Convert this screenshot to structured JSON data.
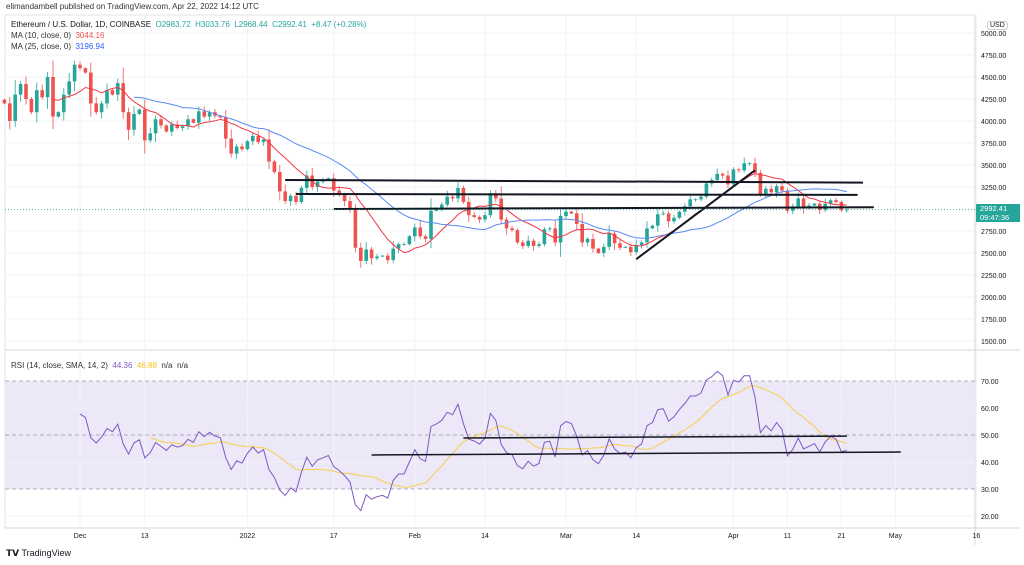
{
  "publisher_line": "elimandambell published on TradingView.com, Apr 22, 2022 14:12 UTC",
  "legend": {
    "symbol": "Ethereum / U.S. Dollar, 1D, COINBASE",
    "open": "O2983.72",
    "high": "H3033.76",
    "low": "L2968.44",
    "close": "C2992.41",
    "change": "+8.47 (+0.28%)",
    "ma10_label": "MA (10, close, 0)",
    "ma10_value": "3044.16",
    "ma25_label": "MA (25, close, 0)",
    "ma25_value": "3196.94",
    "rsi_label": "RSI (14, close, SMA, 14, 2)",
    "rsi_value": "44.36",
    "rsi_sma_value": "46.88",
    "na1": "n/a",
    "na2": "n/a"
  },
  "currency": "USD",
  "last_price": "2992.41",
  "countdown": "09:47:36",
  "logo_text": "TradingView",
  "colors": {
    "up": "#26a69a",
    "down": "#ef5350",
    "ma10": "#f23645",
    "ma25": "#5b8af5",
    "rsi": "#7e57c2",
    "rsi_sma": "#f5d04a",
    "band": "#ede8f8"
  },
  "chart_data": {
    "type": "candlestick",
    "price_ticks": [
      "5000.00",
      "4750.00",
      "4500.00",
      "4250.00",
      "4000.00",
      "3750.00",
      "3500.00",
      "3250.00",
      "2750.00",
      "2500.00",
      "2250.00",
      "2000.00",
      "1750.00",
      "1500.00"
    ],
    "rsi_ticks": [
      "70.00",
      "60.00",
      "50.00",
      "40.00",
      "30.00",
      "20.00"
    ],
    "time_ticks": [
      [
        "Dec",
        "2021-12-01"
      ],
      [
        "13",
        "2021-12-13"
      ],
      [
        "2022",
        "2022-01-01"
      ],
      [
        "17",
        "2022-01-17"
      ],
      [
        "Feb",
        "2022-02-01"
      ],
      [
        "14",
        "2022-02-14"
      ],
      [
        "Mar",
        "2022-03-01"
      ],
      [
        "14",
        "2022-03-14"
      ],
      [
        "Apr",
        "2022-04-01"
      ],
      [
        "11",
        "2022-04-11"
      ],
      [
        "21",
        "2022-04-21"
      ],
      [
        "May",
        "2022-05-01"
      ],
      [
        "16",
        "2022-05-16"
      ]
    ],
    "closes": [
      [
        "2021-11-17",
        4200
      ],
      [
        "2021-11-18",
        4000
      ],
      [
        "2021-11-19",
        4300
      ],
      [
        "2021-11-20",
        4420
      ],
      [
        "2021-11-21",
        4250
      ],
      [
        "2021-11-22",
        4100
      ],
      [
        "2021-11-23",
        4350
      ],
      [
        "2021-11-24",
        4270
      ],
      [
        "2021-11-25",
        4500
      ],
      [
        "2021-11-26",
        4050
      ],
      [
        "2021-11-27",
        4100
      ],
      [
        "2021-11-28",
        4300
      ],
      [
        "2021-11-29",
        4450
      ],
      [
        "2021-11-30",
        4640
      ],
      [
        "2021-12-01",
        4600
      ],
      [
        "2021-12-02",
        4550
      ],
      [
        "2021-12-03",
        4200
      ],
      [
        "2021-12-04",
        4100
      ],
      [
        "2021-12-05",
        4200
      ],
      [
        "2021-12-06",
        4350
      ],
      [
        "2021-12-07",
        4300
      ],
      [
        "2021-12-08",
        4430
      ],
      [
        "2021-12-09",
        4100
      ],
      [
        "2021-12-10",
        3900
      ],
      [
        "2021-12-11",
        4080
      ],
      [
        "2021-12-12",
        4130
      ],
      [
        "2021-12-13",
        3780
      ],
      [
        "2021-12-14",
        3860
      ],
      [
        "2021-12-15",
        4020
      ],
      [
        "2021-12-16",
        3950
      ],
      [
        "2021-12-17",
        3880
      ],
      [
        "2021-12-18",
        3960
      ],
      [
        "2021-12-19",
        3920
      ],
      [
        "2021-12-20",
        3940
      ],
      [
        "2021-12-21",
        4020
      ],
      [
        "2021-12-22",
        3980
      ],
      [
        "2021-12-23",
        4110
      ],
      [
        "2021-12-24",
        4050
      ],
      [
        "2021-12-25",
        4100
      ],
      [
        "2021-12-26",
        4060
      ],
      [
        "2021-12-27",
        4040
      ],
      [
        "2021-12-28",
        3800
      ],
      [
        "2021-12-29",
        3630
      ],
      [
        "2021-12-30",
        3710
      ],
      [
        "2021-12-31",
        3680
      ],
      [
        "2022-01-01",
        3770
      ],
      [
        "2022-01-02",
        3830
      ],
      [
        "2022-01-03",
        3760
      ],
      [
        "2022-01-04",
        3790
      ],
      [
        "2022-01-05",
        3540
      ],
      [
        "2022-01-06",
        3420
      ],
      [
        "2022-01-07",
        3200
      ],
      [
        "2022-01-08",
        3090
      ],
      [
        "2022-01-09",
        3150
      ],
      [
        "2022-01-10",
        3080
      ],
      [
        "2022-01-11",
        3240
      ],
      [
        "2022-01-12",
        3380
      ],
      [
        "2022-01-13",
        3250
      ],
      [
        "2022-01-14",
        3310
      ],
      [
        "2022-01-15",
        3330
      ],
      [
        "2022-01-16",
        3350
      ],
      [
        "2022-01-17",
        3210
      ],
      [
        "2022-01-18",
        3160
      ],
      [
        "2022-01-19",
        3090
      ],
      [
        "2022-01-20",
        3000
      ],
      [
        "2022-01-21",
        2560
      ],
      [
        "2022-01-22",
        2410
      ],
      [
        "2022-01-23",
        2540
      ],
      [
        "2022-01-24",
        2440
      ],
      [
        "2022-01-25",
        2460
      ],
      [
        "2022-01-26",
        2470
      ],
      [
        "2022-01-27",
        2420
      ],
      [
        "2022-01-28",
        2550
      ],
      [
        "2022-01-29",
        2600
      ],
      [
        "2022-01-30",
        2600
      ],
      [
        "2022-01-31",
        2690
      ],
      [
        "2022-02-01",
        2790
      ],
      [
        "2022-02-02",
        2690
      ],
      [
        "2022-02-03",
        2660
      ],
      [
        "2022-02-04",
        2980
      ],
      [
        "2022-02-05",
        3010
      ],
      [
        "2022-02-06",
        3050
      ],
      [
        "2022-02-07",
        3140
      ],
      [
        "2022-02-08",
        3120
      ],
      [
        "2022-02-09",
        3240
      ],
      [
        "2022-02-10",
        3080
      ],
      [
        "2022-02-11",
        2930
      ],
      [
        "2022-02-12",
        2910
      ],
      [
        "2022-02-13",
        2880
      ],
      [
        "2022-02-14",
        2930
      ],
      [
        "2022-02-15",
        3180
      ],
      [
        "2022-02-16",
        3120
      ],
      [
        "2022-02-17",
        2880
      ],
      [
        "2022-02-18",
        2780
      ],
      [
        "2022-02-19",
        2760
      ],
      [
        "2022-02-20",
        2620
      ],
      [
        "2022-02-21",
        2580
      ],
      [
        "2022-02-22",
        2640
      ],
      [
        "2022-02-23",
        2580
      ],
      [
        "2022-02-24",
        2600
      ],
      [
        "2022-02-25",
        2770
      ],
      [
        "2022-02-26",
        2780
      ],
      [
        "2022-02-27",
        2620
      ],
      [
        "2022-02-28",
        2920
      ],
      [
        "2022-03-01",
        2970
      ],
      [
        "2022-03-02",
        2950
      ],
      [
        "2022-03-03",
        2830
      ],
      [
        "2022-03-04",
        2620
      ],
      [
        "2022-03-05",
        2660
      ],
      [
        "2022-03-06",
        2550
      ],
      [
        "2022-03-07",
        2500
      ],
      [
        "2022-03-08",
        2570
      ],
      [
        "2022-03-09",
        2720
      ],
      [
        "2022-03-10",
        2610
      ],
      [
        "2022-03-11",
        2560
      ],
      [
        "2022-03-12",
        2570
      ],
      [
        "2022-03-13",
        2510
      ],
      [
        "2022-03-14",
        2590
      ],
      [
        "2022-03-15",
        2620
      ],
      [
        "2022-03-16",
        2780
      ],
      [
        "2022-03-17",
        2810
      ],
      [
        "2022-03-18",
        2940
      ],
      [
        "2022-03-19",
        2950
      ],
      [
        "2022-03-20",
        2860
      ],
      [
        "2022-03-21",
        2900
      ],
      [
        "2022-03-22",
        2970
      ],
      [
        "2022-03-23",
        3030
      ],
      [
        "2022-03-24",
        3110
      ],
      [
        "2022-03-25",
        3110
      ],
      [
        "2022-03-26",
        3140
      ],
      [
        "2022-03-27",
        3290
      ],
      [
        "2022-03-28",
        3330
      ],
      [
        "2022-03-29",
        3400
      ],
      [
        "2022-03-30",
        3380
      ],
      [
        "2022-03-31",
        3280
      ],
      [
        "2022-04-01",
        3450
      ],
      [
        "2022-04-02",
        3440
      ],
      [
        "2022-04-03",
        3520
      ],
      [
        "2022-04-04",
        3520
      ],
      [
        "2022-04-05",
        3410
      ],
      [
        "2022-04-06",
        3170
      ],
      [
        "2022-04-07",
        3230
      ],
      [
        "2022-04-08",
        3190
      ],
      [
        "2022-04-09",
        3260
      ],
      [
        "2022-04-10",
        3210
      ],
      [
        "2022-04-11",
        2980
      ],
      [
        "2022-04-12",
        3030
      ],
      [
        "2022-04-13",
        3120
      ],
      [
        "2022-04-14",
        3020
      ],
      [
        "2022-04-15",
        3040
      ],
      [
        "2022-04-16",
        3060
      ],
      [
        "2022-04-17",
        2990
      ],
      [
        "2022-04-18",
        3060
      ],
      [
        "2022-04-19",
        3100
      ],
      [
        "2022-04-20",
        3080
      ],
      [
        "2022-04-21",
        2984
      ],
      [
        "2022-04-22",
        2992
      ]
    ],
    "price_trendlines": [
      [
        [
          "2022-01-08",
          3330
        ],
        [
          "2022-04-25",
          3300
        ]
      ],
      [
        [
          "2022-01-10",
          3170
        ],
        [
          "2022-04-24",
          3160
        ]
      ],
      [
        [
          "2022-01-17",
          3000
        ],
        [
          "2022-04-27",
          3020
        ]
      ],
      [
        [
          "2022-03-14",
          2430
        ],
        [
          "2022-04-05",
          3440
        ]
      ]
    ],
    "rsi_trendlines": [
      [
        [
          "2022-02-10",
          48.9
        ],
        [
          "2022-04-22",
          49.6
        ]
      ],
      [
        [
          "2022-01-24",
          42.6
        ],
        [
          "2022-05-02",
          43.7
        ]
      ]
    ],
    "rsi_band": [
      30,
      70
    ],
    "rsi_ylim": [
      15,
      75
    ],
    "price_ylim": [
      1300,
      5050
    ]
  }
}
